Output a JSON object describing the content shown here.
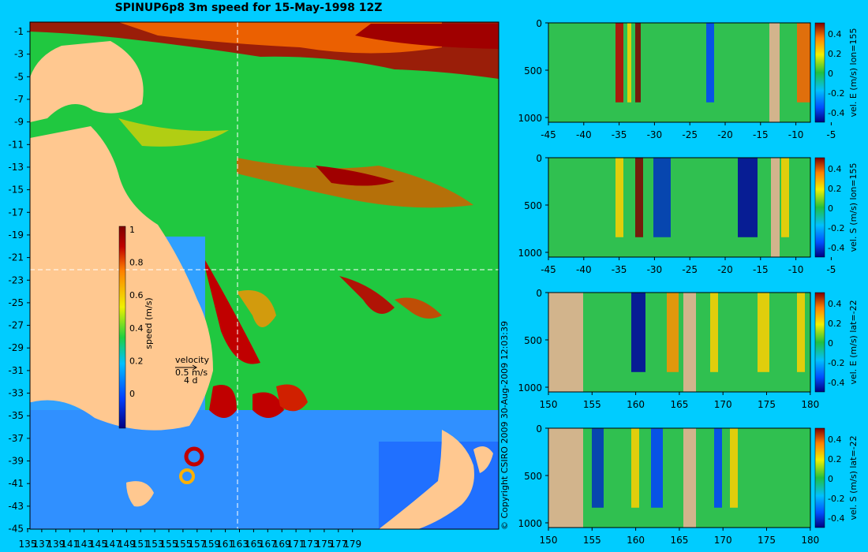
{
  "title": "SPINUP6p8 3m speed for 15-May-1998 12Z",
  "copyright": "© Copyright CSIRO 2009   30-Aug-2009 12:03:39",
  "chart_data": [
    {
      "type": "heatmap",
      "name": "speed_map",
      "x_ticks": [
        "135",
        "137",
        "139",
        "141",
        "143",
        "145",
        "147",
        "149",
        "151",
        "153",
        "155",
        "155",
        "157",
        "159",
        "161",
        "163",
        "165",
        "167",
        "169",
        "171",
        "173",
        "175",
        "177",
        "179"
      ],
      "y_ticks": [
        "-1",
        "-3",
        "-5",
        "-7",
        "-9",
        "-11",
        "-13",
        "-15",
        "-17",
        "-19",
        "-21",
        "-23",
        "-25",
        "-27",
        "-29",
        "-31",
        "-33",
        "-35",
        "-37",
        "-39",
        "-41",
        "-43",
        "-45"
      ],
      "colorbar": {
        "label": "speed (m/s)",
        "ticks": [
          "1",
          "0.8",
          "0.6",
          "0.4",
          "0.2",
          "0"
        ],
        "range": [
          0,
          1
        ]
      },
      "velocity_key": [
        "velocity",
        "0.5 m/s",
        "4 d"
      ],
      "crosshair": {
        "lon": 155,
        "lat": -22
      }
    },
    {
      "type": "heatmap",
      "name": "section_1",
      "ylabel": "vel. E (m/s) lon=155",
      "x_ticks": [
        "-45",
        "-40",
        "-35",
        "-30",
        "-25",
        "-20",
        "-15",
        "-10",
        "-5"
      ],
      "y_ticks": [
        "0",
        "500",
        "1000"
      ],
      "colorbar_ticks": [
        "0.4",
        "0.2",
        "0",
        "-0.2",
        "-0.4"
      ]
    },
    {
      "type": "heatmap",
      "name": "section_2",
      "ylabel": "vel. S (m/s) lon=155",
      "x_ticks": [
        "-45",
        "-40",
        "-35",
        "-30",
        "-25",
        "-20",
        "-15",
        "-10",
        "-5"
      ],
      "y_ticks": [
        "0",
        "500",
        "1000"
      ],
      "colorbar_ticks": [
        "0.4",
        "0.2",
        "0",
        "-0.2",
        "-0.4"
      ]
    },
    {
      "type": "heatmap",
      "name": "section_3",
      "ylabel": "vel. E (m/s) lat=-22",
      "x_ticks": [
        "150",
        "155",
        "160",
        "165",
        "170",
        "175",
        "180"
      ],
      "y_ticks": [
        "0",
        "500",
        "1000"
      ],
      "colorbar_ticks": [
        "0.4",
        "0.2",
        "0",
        "-0.2",
        "-0.4"
      ]
    },
    {
      "type": "heatmap",
      "name": "section_4",
      "ylabel": "vel. S (m/s) lat=-22",
      "x_ticks": [
        "150",
        "155",
        "160",
        "165",
        "170",
        "175",
        "180"
      ],
      "y_ticks": [
        "0",
        "500",
        "1000"
      ],
      "colorbar_ticks": [
        "0.4",
        "0.2",
        "0",
        "-0.2",
        "-0.4"
      ]
    }
  ]
}
